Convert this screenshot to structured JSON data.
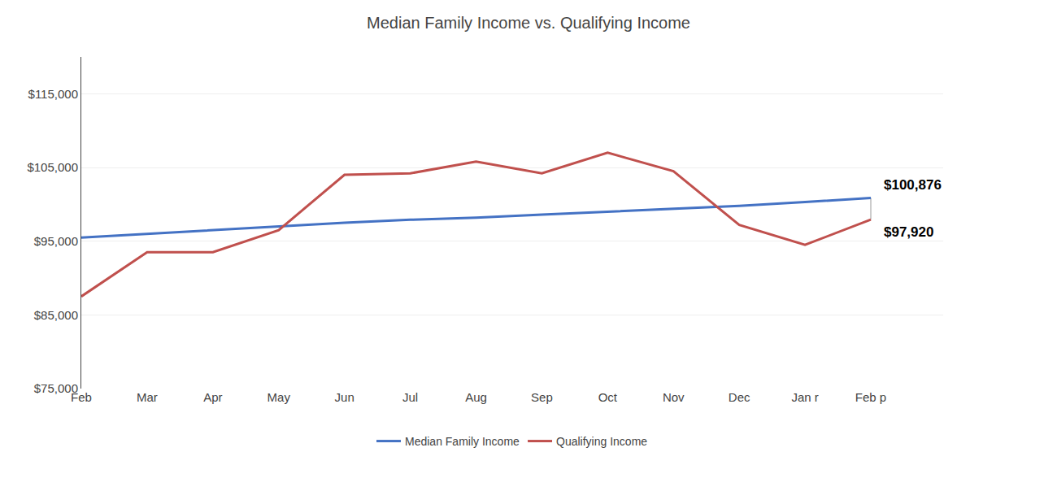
{
  "chart_data": {
    "type": "line",
    "title": "Median Family Income vs. Qualifying Income",
    "categories": [
      "Feb",
      "Mar",
      "Apr",
      "May",
      "Jun",
      "Jul",
      "Aug",
      "Sep",
      "Oct",
      "Nov",
      "Dec",
      "Jan r",
      "Feb p"
    ],
    "series": [
      {
        "name": "Median Family Income",
        "color": "#4472C4",
        "values": [
          95500,
          96000,
          96500,
          97000,
          97500,
          97900,
          98200,
          98600,
          99000,
          99400,
          99800,
          100300,
          100876
        ]
      },
      {
        "name": "Qualifying Income",
        "color": "#C0504D",
        "values": [
          87500,
          93500,
          93500,
          96500,
          104000,
          104200,
          105800,
          104200,
          107000,
          104500,
          97200,
          94500,
          97920
        ]
      }
    ],
    "ylim": [
      75000,
      120000
    ],
    "yticks": [
      {
        "value": 75000,
        "label": "$75,000"
      },
      {
        "value": 85000,
        "label": "$85,000"
      },
      {
        "value": 95000,
        "label": "$95,000"
      },
      {
        "value": 105000,
        "label": "$105,000"
      },
      {
        "value": 115000,
        "label": "$115,000"
      }
    ],
    "annotations": [
      {
        "text": "$100,876",
        "x": "Feb p",
        "y": 100876
      },
      {
        "text": "$97,920",
        "x": "Feb p",
        "y": 97920
      }
    ],
    "grid": true,
    "legend": "bottom"
  }
}
